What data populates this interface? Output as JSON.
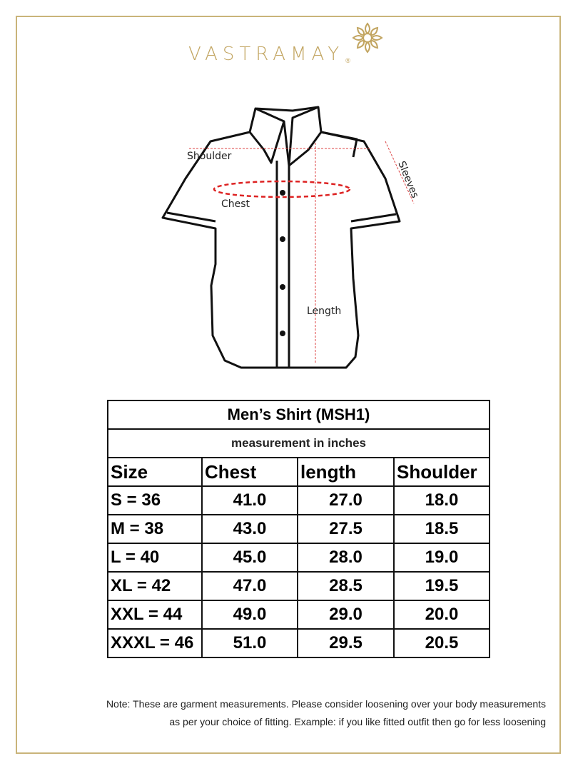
{
  "brand": {
    "name": "VASTRAMAY",
    "registered": "®",
    "color": "#c2a561"
  },
  "diagram": {
    "labels": {
      "shoulder": "Shoulder",
      "chest": "Chest",
      "sleeves": "Sleeves",
      "length": "Length"
    }
  },
  "table": {
    "title": "Men’s Shirt (MSH1)",
    "subtitle": "measurement in inches",
    "headers": [
      "Size",
      "Chest",
      "length",
      "Shoulder"
    ],
    "rows": [
      [
        "S = 36",
        "41.0",
        "27.0",
        "18.0"
      ],
      [
        "M = 38",
        "43.0",
        "27.5",
        "18.5"
      ],
      [
        "L = 40",
        "45.0",
        "28.0",
        "19.0"
      ],
      [
        "XL = 42",
        "47.0",
        "28.5",
        "19.5"
      ],
      [
        "XXL = 44",
        "49.0",
        "29.0",
        "20.0"
      ],
      [
        "XXXL = 46",
        "51.0",
        "29.5",
        "20.5"
      ]
    ]
  },
  "note": {
    "line1": "Note: These are garment measurements. Please consider loosening over your body measurements",
    "line2": "as per your choice of fitting. Example: if you like fitted outfit then go for less loosening"
  }
}
